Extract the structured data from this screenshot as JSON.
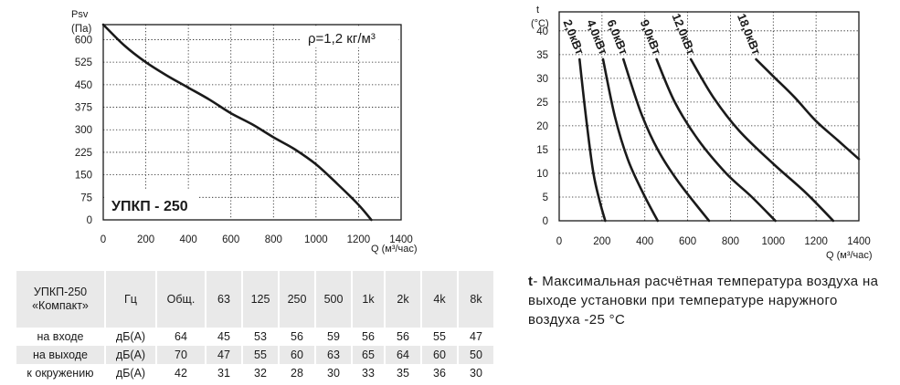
{
  "chart_data": [
    {
      "type": "line",
      "ylabel_top": "Psv",
      "ylabel_unit": "(Па)",
      "xlabel": "Q (м³/час)",
      "density_label": "ρ=1,2 кг/м³",
      "model_label": "УПКП - 250",
      "xlim": [
        0,
        1400
      ],
      "ylim": [
        0,
        650
      ],
      "x_ticks": [
        "0",
        "200",
        "400",
        "600",
        "800",
        "1000",
        "1200",
        "1400"
      ],
      "y_ticks": [
        "0",
        "75",
        "150",
        "225",
        "300",
        "375",
        "450",
        "525",
        "600"
      ],
      "grid": true,
      "series": [
        {
          "x": [
            0,
            100,
            200,
            300,
            400,
            500,
            600,
            700,
            800,
            900,
            1000,
            1100,
            1200,
            1260
          ],
          "y": [
            650,
            580,
            525,
            480,
            440,
            400,
            355,
            318,
            275,
            235,
            185,
            120,
            50,
            0
          ]
        }
      ]
    },
    {
      "type": "line",
      "ylabel_top": "t",
      "ylabel_unit": "(°C)",
      "xlabel": "Q (м³/час)",
      "xlim": [
        0,
        1400
      ],
      "ylim": [
        0,
        44
      ],
      "x_ticks": [
        "0",
        "200",
        "400",
        "600",
        "800",
        "1000",
        "1200",
        "1400"
      ],
      "y_ticks": [
        "0",
        "5",
        "10",
        "15",
        "20",
        "25",
        "30",
        "35",
        "40"
      ],
      "grid": true,
      "series": [
        {
          "name": "2,0кВт",
          "x": [
            95,
            130,
            160,
            190,
            215
          ],
          "y": [
            34,
            20,
            10,
            4,
            0
          ]
        },
        {
          "name": "4,0кВт",
          "x": [
            205,
            260,
            320,
            390,
            460
          ],
          "y": [
            34,
            22,
            13,
            6,
            0
          ]
        },
        {
          "name": "6,0кВт",
          "x": [
            300,
            380,
            460,
            560,
            700
          ],
          "y": [
            34,
            23,
            15,
            8,
            0
          ]
        },
        {
          "name": "9,0кВт",
          "x": [
            455,
            540,
            650,
            780,
            900,
            1010
          ],
          "y": [
            34,
            25,
            17,
            10,
            5,
            0
          ]
        },
        {
          "name": "12,0кВт",
          "x": [
            615,
            720,
            840,
            1000,
            1150,
            1280
          ],
          "y": [
            34,
            26,
            19,
            12,
            6,
            0
          ]
        },
        {
          "name": "18,0кВт",
          "x": [
            920,
            1010,
            1100,
            1200,
            1300,
            1400
          ],
          "y": [
            34,
            30,
            26,
            21,
            17,
            13
          ]
        }
      ]
    }
  ],
  "table": {
    "header": [
      "УПКП-250\n«Компакт»",
      "Гц",
      "Общ.",
      "63",
      "125",
      "250",
      "500",
      "1k",
      "2k",
      "4k",
      "8k"
    ],
    "rows": [
      [
        "на входе",
        "дБ(А)",
        "64",
        "45",
        "53",
        "56",
        "59",
        "56",
        "56",
        "55",
        "47"
      ],
      [
        "на выходе",
        "дБ(А)",
        "70",
        "47",
        "55",
        "60",
        "63",
        "65",
        "64",
        "60",
        "50"
      ],
      [
        "к окружению",
        "дБ(А)",
        "42",
        "31",
        "32",
        "28",
        "30",
        "33",
        "35",
        "36",
        "30"
      ]
    ]
  },
  "note": {
    "mark": "t",
    "text": "- Максимальная расчётная температура воздуха на выходе установки при температуре наружного воздуха -25 °С"
  }
}
